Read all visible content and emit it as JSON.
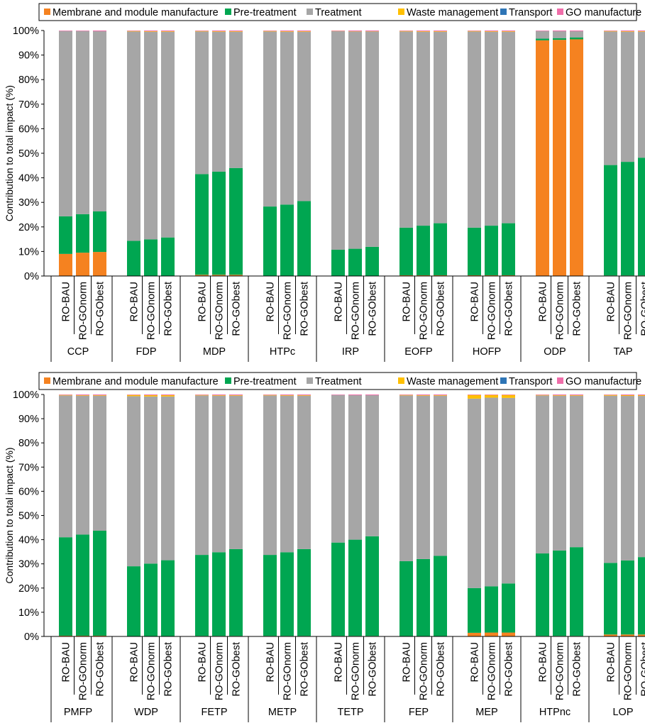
{
  "legend": [
    {
      "name": "Membrane and module manufacture",
      "color": "#F58220"
    },
    {
      "name": "Pre-treatment",
      "color": "#00A651"
    },
    {
      "name": "Treatment",
      "color": "#A6A6A6"
    },
    {
      "name": "Waste management",
      "color": "#FFC000"
    },
    {
      "name": "Transport",
      "color": "#2E75B6"
    },
    {
      "name": "GO manufacture",
      "color": "#F06EAA"
    }
  ],
  "ylabel": "Contribution to total impact (%)",
  "yticks": [
    "0%",
    "10%",
    "20%",
    "30%",
    "40%",
    "50%",
    "60%",
    "70%",
    "80%",
    "90%",
    "100%"
  ],
  "chart_data": [
    {
      "type": "bar",
      "stacked": true,
      "ylabel": "Contribution to total impact (%)",
      "ylim": [
        0,
        100
      ],
      "scenarios": [
        "RO-BAU",
        "RO-GOnorm",
        "RO-GObest"
      ],
      "groups": [
        {
          "name": "CCP",
          "bars": [
            [
              9,
              15.3,
              75.5,
              0,
              0,
              0.2
            ],
            [
              9.5,
              15.7,
              74.6,
              0,
              0,
              0.2
            ],
            [
              9.8,
              16.5,
              73.4,
              0,
              0,
              0.3
            ]
          ]
        },
        {
          "name": "FDP",
          "bars": [
            [
              0,
              14.3,
              85.3,
              0.2,
              0,
              0.2
            ],
            [
              0,
              14.9,
              84.6,
              0.2,
              0,
              0.3
            ],
            [
              0,
              15.7,
              83.8,
              0.2,
              0,
              0.3
            ]
          ]
        },
        {
          "name": "MDP",
          "bars": [
            [
              0.5,
              41,
              58.1,
              0.2,
              0,
              0.2
            ],
            [
              0.5,
              42,
              57,
              0.2,
              0,
              0.3
            ],
            [
              0.5,
              43.5,
              55.5,
              0.2,
              0,
              0.3
            ]
          ]
        },
        {
          "name": "HTPc",
          "bars": [
            [
              0,
              28.3,
              71.3,
              0.2,
              0,
              0.2
            ],
            [
              0,
              29.1,
              70.4,
              0.2,
              0,
              0.3
            ],
            [
              0,
              30.5,
              69,
              0.2,
              0,
              0.3
            ]
          ]
        },
        {
          "name": "IRP",
          "bars": [
            [
              0,
              10.7,
              89,
              0.1,
              0,
              0.2
            ],
            [
              0,
              11.1,
              88.5,
              0.1,
              0,
              0.3
            ],
            [
              0,
              11.9,
              87.7,
              0.1,
              0,
              0.3
            ]
          ]
        },
        {
          "name": "EOFP",
          "bars": [
            [
              0.3,
              19.4,
              79.9,
              0.2,
              0,
              0.2
            ],
            [
              0.3,
              20.2,
              79,
              0.2,
              0,
              0.3
            ],
            [
              0.3,
              21.2,
              78,
              0.2,
              0,
              0.3
            ]
          ]
        },
        {
          "name": "HOFP",
          "bars": [
            [
              0.3,
              19.4,
              79.9,
              0.2,
              0,
              0.2
            ],
            [
              0.3,
              20.2,
              79,
              0.2,
              0,
              0.3
            ],
            [
              0.3,
              21.2,
              78,
              0.2,
              0,
              0.3
            ]
          ]
        },
        {
          "name": "ODP",
          "bars": [
            [
              96,
              0.7,
              3.1,
              0,
              0,
              0.2
            ],
            [
              96.2,
              0.7,
              2.8,
              0,
              0,
              0.3
            ],
            [
              96.4,
              0.8,
              2.5,
              0,
              0,
              0.3
            ]
          ]
        },
        {
          "name": "TAP",
          "bars": [
            [
              0.2,
              45,
              54.4,
              0.2,
              0,
              0.2
            ],
            [
              0.2,
              46.3,
              53,
              0.2,
              0,
              0.3
            ],
            [
              0.2,
              48,
              51.3,
              0.2,
              0,
              0.3
            ]
          ]
        }
      ]
    },
    {
      "type": "bar",
      "stacked": true,
      "ylabel": "Contribution to total impact (%)",
      "ylim": [
        0,
        100
      ],
      "scenarios": [
        "RO-BAU",
        "RO-GOnorm",
        "RO-GObest"
      ],
      "groups": [
        {
          "name": "PMFP",
          "bars": [
            [
              0.3,
              40.7,
              58.6,
              0.2,
              0,
              0.2
            ],
            [
              0.3,
              41.8,
              57.4,
              0.2,
              0,
              0.3
            ],
            [
              0.3,
              43.4,
              55.8,
              0.2,
              0,
              0.3
            ]
          ]
        },
        {
          "name": "WDP",
          "bars": [
            [
              0,
              29,
              70.3,
              0.5,
              0,
              0.2
            ],
            [
              0,
              30.1,
              69.1,
              0.5,
              0,
              0.3
            ],
            [
              0,
              31.5,
              67.7,
              0.5,
              0,
              0.3
            ]
          ]
        },
        {
          "name": "FETP",
          "bars": [
            [
              0.2,
              33.5,
              65.9,
              0.2,
              0,
              0.2
            ],
            [
              0.2,
              34.6,
              64.7,
              0.2,
              0,
              0.3
            ],
            [
              0.2,
              35.9,
              63.4,
              0.2,
              0,
              0.3
            ]
          ]
        },
        {
          "name": "METP",
          "bars": [
            [
              0.2,
              33.5,
              65.9,
              0.2,
              0,
              0.2
            ],
            [
              0.2,
              34.6,
              64.7,
              0.2,
              0,
              0.3
            ],
            [
              0.2,
              35.9,
              63.4,
              0.2,
              0,
              0.3
            ]
          ]
        },
        {
          "name": "TETP",
          "bars": [
            [
              0.2,
              38.6,
              61,
              0,
              0,
              0.2
            ],
            [
              0.2,
              39.8,
              59.7,
              0,
              0,
              0.3
            ],
            [
              0.2,
              41.2,
              58.3,
              0,
              0,
              0.3
            ]
          ]
        },
        {
          "name": "FEP",
          "bars": [
            [
              0,
              31.1,
              68.5,
              0.2,
              0,
              0.2
            ],
            [
              0,
              32,
              67.5,
              0.2,
              0,
              0.3
            ],
            [
              0,
              33.3,
              66.2,
              0.2,
              0,
              0.3
            ]
          ]
        },
        {
          "name": "MEP",
          "bars": [
            [
              1.5,
              18.5,
              78.3,
              1.5,
              0,
              0.2
            ],
            [
              1.6,
              19.1,
              78,
              1.1,
              0,
              0.2
            ],
            [
              1.6,
              20.3,
              76.7,
              1.2,
              0,
              0.2
            ]
          ]
        },
        {
          "name": "HTPnc",
          "bars": [
            [
              0.2,
              34.1,
              65.3,
              0.2,
              0,
              0.2
            ],
            [
              0.2,
              35.3,
              64,
              0.2,
              0,
              0.3
            ],
            [
              0.2,
              36.7,
              62.6,
              0.2,
              0,
              0.3
            ]
          ]
        },
        {
          "name": "LOP",
          "bars": [
            [
              0.8,
              29.6,
              69.1,
              0.3,
              0,
              0.2
            ],
            [
              0.8,
              30.6,
              68,
              0.3,
              0,
              0.3
            ],
            [
              0.8,
              32,
              66.6,
              0.3,
              0,
              0.3
            ]
          ]
        }
      ]
    }
  ]
}
